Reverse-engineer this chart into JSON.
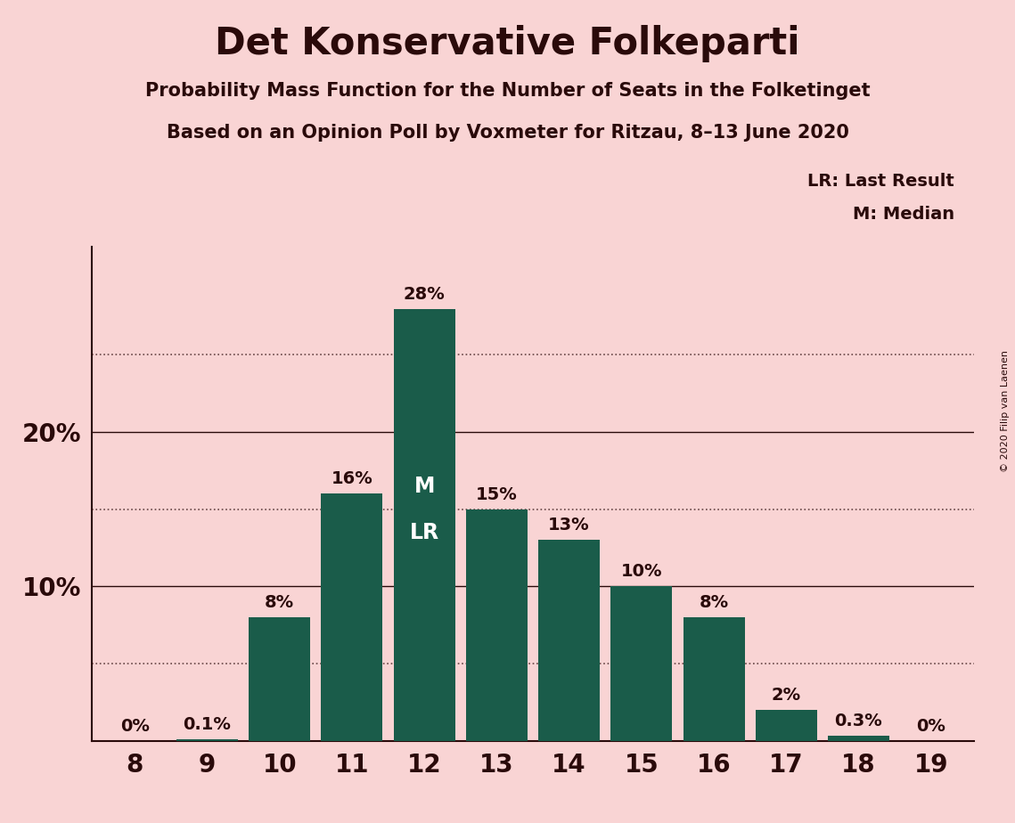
{
  "title": "Det Konservative Folkeparti",
  "subtitle1": "Probability Mass Function for the Number of Seats in the Folketinget",
  "subtitle2": "Based on an Opinion Poll by Voxmeter for Ritzau, 8–13 June 2020",
  "copyright": "© 2020 Filip van Laenen",
  "seats": [
    8,
    9,
    10,
    11,
    12,
    13,
    14,
    15,
    16,
    17,
    18,
    19
  ],
  "probabilities": [
    0.0,
    0.1,
    8.0,
    16.0,
    28.0,
    15.0,
    13.0,
    10.0,
    8.0,
    2.0,
    0.3,
    0.0
  ],
  "labels": [
    "0%",
    "0.1%",
    "8%",
    "16%",
    "28%",
    "15%",
    "13%",
    "10%",
    "8%",
    "2%",
    "0.3%",
    "0%"
  ],
  "bar_color": "#1a5c4a",
  "background_color": "#f9d4d4",
  "text_color": "#2a0a0a",
  "median_seat": 12,
  "last_result_seat": 12,
  "dotted_lines": [
    5,
    15,
    25
  ],
  "solid_lines": [
    10,
    20
  ],
  "ylim": [
    0,
    32
  ],
  "legend_line1": "LR: Last Result",
  "legend_line2": "M: Median"
}
